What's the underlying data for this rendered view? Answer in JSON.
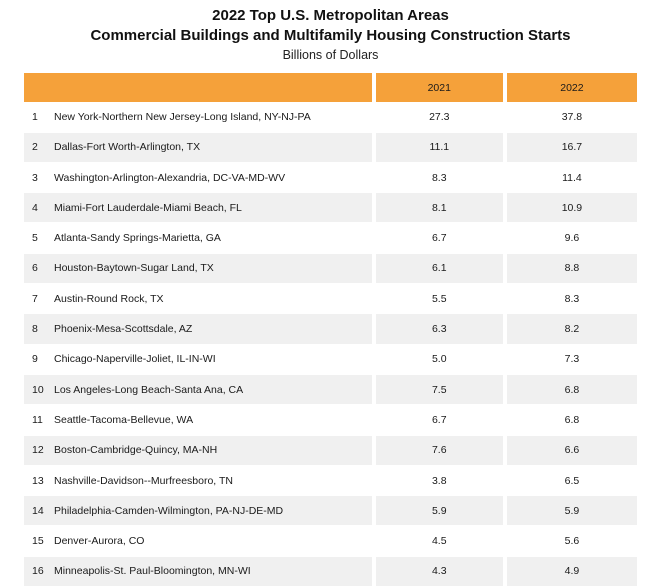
{
  "header": {
    "title_line1": "2022 Top U.S. Metropolitan Areas",
    "title_line2": "Commercial Buildings and Multifamily Housing Construction Starts",
    "subtitle": "Billions of Dollars"
  },
  "colors": {
    "header_fill": "#f5a13a",
    "alt_row_fill": "#f0f0f0"
  },
  "chart_data": {
    "type": "table",
    "title": "2022 Top U.S. Metropolitan Areas Commercial Buildings and Multifamily Housing Construction Starts",
    "subtitle": "Billions of Dollars",
    "columns": [
      "",
      "",
      "2021",
      "2022"
    ],
    "rows": [
      {
        "rank": "1",
        "name": "New York-Northern New Jersey-Long Island, NY-NJ-PA",
        "v2021": "27.3",
        "v2022": "37.8"
      },
      {
        "rank": "2",
        "name": "Dallas-Fort Worth-Arlington, TX",
        "v2021": "11.1",
        "v2022": "16.7"
      },
      {
        "rank": "3",
        "name": "Washington-Arlington-Alexandria, DC-VA-MD-WV",
        "v2021": "8.3",
        "v2022": "11.4"
      },
      {
        "rank": "4",
        "name": "Miami-Fort Lauderdale-Miami Beach, FL",
        "v2021": "8.1",
        "v2022": "10.9"
      },
      {
        "rank": "5",
        "name": "Atlanta-Sandy Springs-Marietta, GA",
        "v2021": "6.7",
        "v2022": "9.6"
      },
      {
        "rank": "6",
        "name": "Houston-Baytown-Sugar Land, TX",
        "v2021": "6.1",
        "v2022": "8.8"
      },
      {
        "rank": "7",
        "name": "Austin-Round Rock, TX",
        "v2021": "5.5",
        "v2022": "8.3"
      },
      {
        "rank": "8",
        "name": "Phoenix-Mesa-Scottsdale, AZ",
        "v2021": "6.3",
        "v2022": "8.2"
      },
      {
        "rank": "9",
        "name": "Chicago-Naperville-Joliet, IL-IN-WI",
        "v2021": "5.0",
        "v2022": "7.3"
      },
      {
        "rank": "10",
        "name": "Los Angeles-Long Beach-Santa Ana, CA",
        "v2021": "7.5",
        "v2022": "6.8"
      },
      {
        "rank": "11",
        "name": "Seattle-Tacoma-Bellevue, WA",
        "v2021": "6.7",
        "v2022": "6.8"
      },
      {
        "rank": "12",
        "name": "Boston-Cambridge-Quincy, MA-NH",
        "v2021": "7.6",
        "v2022": "6.6"
      },
      {
        "rank": "13",
        "name": "Nashville-Davidson--Murfreesboro, TN",
        "v2021": "3.8",
        "v2022": "6.5"
      },
      {
        "rank": "14",
        "name": "Philadelphia-Camden-Wilmington, PA-NJ-DE-MD",
        "v2021": "5.9",
        "v2022": "5.9"
      },
      {
        "rank": "15",
        "name": "Denver-Aurora, CO",
        "v2021": "4.5",
        "v2022": "5.6"
      },
      {
        "rank": "16",
        "name": "Minneapolis-St. Paul-Bloomington, MN-WI",
        "v2021": "4.3",
        "v2022": "4.9"
      }
    ]
  }
}
